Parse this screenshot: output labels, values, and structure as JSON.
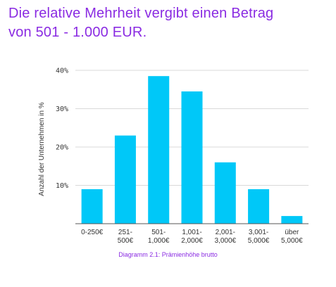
{
  "headline": {
    "line1": "Die relative Mehrheit vergibt einen Betrag",
    "line2": "von 501 - 1.000 EUR."
  },
  "caption": "Diagramm 2.1: Prämienhöhe brutto",
  "colors": {
    "headline": "#8a2be2",
    "bar": "#00c8f8",
    "grid": "#d9d9d9",
    "axis": "#555555"
  },
  "chart_data": {
    "type": "bar",
    "title": "",
    "xlabel": "",
    "ylabel": "Anzahl der Unternehmen in %",
    "categories": [
      [
        "0-250€"
      ],
      [
        "251-",
        "500€"
      ],
      [
        "501-",
        "1,000€"
      ],
      [
        "1,001-",
        "2,000€"
      ],
      [
        "2,001-",
        "3,000€"
      ],
      [
        "3,001-",
        "5,000€"
      ],
      [
        "über",
        "5,000€"
      ]
    ],
    "values": [
      9,
      23,
      38.5,
      34.5,
      16,
      9,
      2
    ],
    "yticks": [
      "10%",
      "20%",
      "30%",
      "40%"
    ],
    "ytick_values": [
      10,
      20,
      30,
      40
    ],
    "ylim": [
      0,
      40
    ],
    "grid": true,
    "legend": "none"
  }
}
